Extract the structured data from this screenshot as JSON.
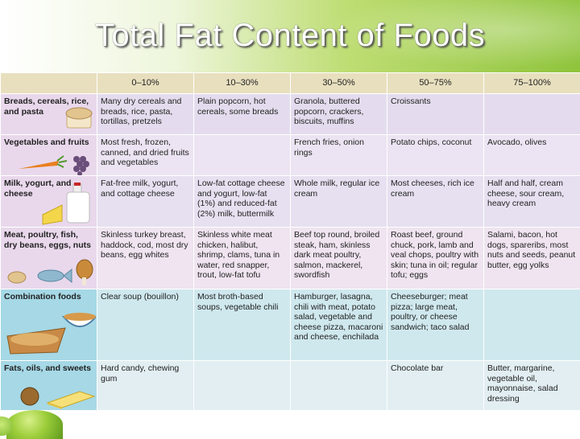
{
  "title": "Total Fat Content of Foods",
  "headers": [
    "0–10%",
    "10–30%",
    "30–50%",
    "50–75%",
    "75–100%"
  ],
  "rows": [
    {
      "category": "Breads, cereals, rice, and pasta",
      "cells": [
        "Many dry cereals and breads, rice, pasta, tortillas, pretzels",
        "Plain popcorn, hot cereals, some breads",
        "Granola, buttered popcorn, crackers, biscuits, muffins",
        "Croissants",
        ""
      ]
    },
    {
      "category": "Vegetables and fruits",
      "cells": [
        "Most fresh, frozen, canned, and dried fruits and vegetables",
        "",
        "French fries, onion rings",
        "Potato chips, coconut",
        "Avocado, olives"
      ]
    },
    {
      "category": "Milk, yogurt, and cheese",
      "cells": [
        "Fat-free milk, yogurt, and cottage cheese",
        "Low-fat cottage cheese and yogurt, low-fat (1%) and reduced-fat (2%) milk, buttermilk",
        "Whole milk, regular ice cream",
        "Most cheeses, rich ice cream",
        "Half and half, cream cheese, sour cream, heavy cream"
      ]
    },
    {
      "category": "Meat, poultry, fish, dry beans, eggs, nuts",
      "cells": [
        "Skinless turkey breast, haddock, cod, most dry beans, egg whites",
        "Skinless white meat chicken, halibut, shrimp, clams, tuna in water, red snapper, trout, low-fat tofu",
        "Beef top round, broiled steak, ham, skinless dark meat poultry, salmon, mackerel, swordfish",
        "Roast beef, ground chuck, pork, lamb and veal chops, poultry with skin; tuna in oil; regular tofu; eggs",
        "Salami, bacon, hot dogs, spareribs, most nuts and seeds, peanut butter, egg yolks"
      ]
    },
    {
      "category": "Combination foods",
      "cells": [
        "Clear soup (bouillon)",
        "Most broth-based soups, vegetable chili",
        "Hamburger, lasagna, chili with meat, potato salad, vegetable and cheese pizza, macaroni and cheese, enchilada",
        "Cheeseburger; meat pizza; large meat, poultry, or cheese sandwich; taco salad",
        ""
      ]
    },
    {
      "category": "Fats, oils, and sweets",
      "cells": [
        "Hard candy, chewing gum",
        "",
        "",
        "Chocolate bar",
        "Butter, margarine, vegetable oil, mayonnaise, salad dressing"
      ]
    }
  ],
  "colors": {
    "header_row": "#e8dfbe",
    "rows": [
      "#e4dcee",
      "#ece4f2",
      "#e6e0f0",
      "#efe4f0",
      "#cfe8ee",
      "#e2eef2"
    ],
    "label_col": [
      "#e9d8ec",
      "#e9d8ec",
      "#e9d8ec",
      "#e9d8ec",
      "#a6d8e6",
      "#a6d8e6"
    ],
    "title_text": "#ffffff",
    "banner_green": "#8fc43c"
  },
  "icons": [
    "bread-icon",
    "vegetables-icon",
    "milk-cheese-icon",
    "meat-fish-icon",
    "casserole-icon",
    "sweets-icon",
    "apple-icon"
  ]
}
